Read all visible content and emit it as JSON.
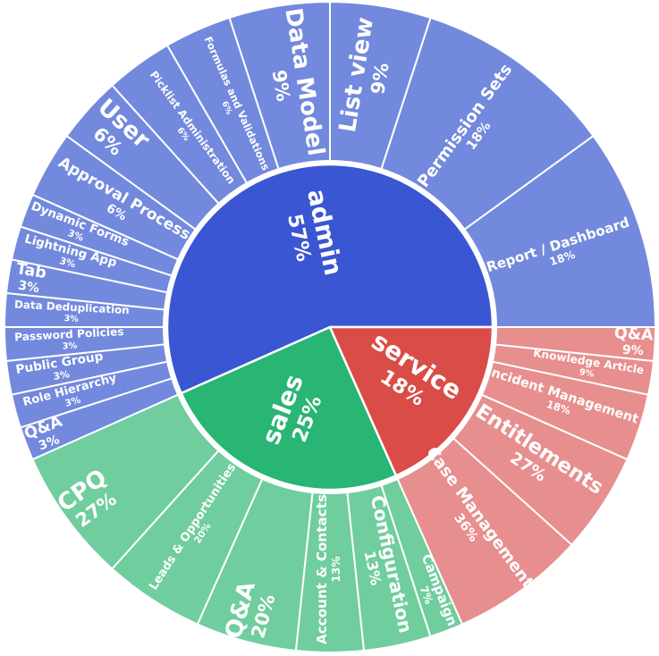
{
  "chart_data": {
    "type": "sunburst",
    "title": "",
    "unit": "percent of parent",
    "start_angle_deg": 0,
    "direction": "counterclockwise",
    "text_color": "#ffffff",
    "background": "#ffffff",
    "border_color": "#ffffff",
    "rings": [
      {
        "name": "admin",
        "pct": "57%",
        "value": 34,
        "color": "#3a56d3",
        "child_color": "#7289dd",
        "children": [
          {
            "name": "Report / Dashboard",
            "pct": "18%",
            "value": 6
          },
          {
            "name": "Permission Sets",
            "pct": "18%",
            "value": 6
          },
          {
            "name": "List view",
            "pct": "9%",
            "value": 3
          },
          {
            "name": "Data Model",
            "pct": "9%",
            "value": 3
          },
          {
            "name": "Formulas and Validations",
            "pct": "6%",
            "value": 2
          },
          {
            "name": "Picklist Administration",
            "pct": "6%",
            "value": 2
          },
          {
            "name": "User",
            "pct": "6%",
            "value": 2
          },
          {
            "name": "Approval Process",
            "pct": "6%",
            "value": 2
          },
          {
            "name": "Dynamic Forms",
            "pct": "3%",
            "value": 1
          },
          {
            "name": "Lightning App",
            "pct": "3%",
            "value": 1
          },
          {
            "name": "Tab",
            "pct": "3%",
            "value": 1
          },
          {
            "name": "Data Deduplication",
            "pct": "3%",
            "value": 1
          },
          {
            "name": "Password Policies",
            "pct": "3%",
            "value": 1
          },
          {
            "name": "Public Group",
            "pct": "3%",
            "value": 1
          },
          {
            "name": "Role Hierarchy",
            "pct": "3%",
            "value": 1
          },
          {
            "name": "Q&A",
            "pct": "3%",
            "value": 1
          }
        ]
      },
      {
        "name": "sales",
        "pct": "25%",
        "value": 15,
        "color": "#29b573",
        "child_color": "#70cd9e",
        "children": [
          {
            "name": "CPQ",
            "pct": "27%",
            "value": 4
          },
          {
            "name": "Leads & Opportunities",
            "pct": "20%",
            "value": 3
          },
          {
            "name": "Q&A",
            "pct": "20%",
            "value": 3
          },
          {
            "name": "Account & Contacts",
            "pct": "13%",
            "value": 2
          },
          {
            "name": "Configuration",
            "pct": "13%",
            "value": 2
          },
          {
            "name": "Campaign",
            "pct": "7%",
            "value": 1
          }
        ]
      },
      {
        "name": "service",
        "pct": "18%",
        "value": 11,
        "color": "#da4c48",
        "child_color": "#e78e8e",
        "children": [
          {
            "name": "Case Management",
            "pct": "36%",
            "value": 4
          },
          {
            "name": "Entitlements",
            "pct": "27%",
            "value": 3
          },
          {
            "name": "Incident Management",
            "pct": "18%",
            "value": 2
          },
          {
            "name": "Knowledge Article",
            "pct": "9%",
            "value": 1
          },
          {
            "name": "Q&A",
            "pct": "9%",
            "value": 1
          }
        ]
      }
    ]
  }
}
